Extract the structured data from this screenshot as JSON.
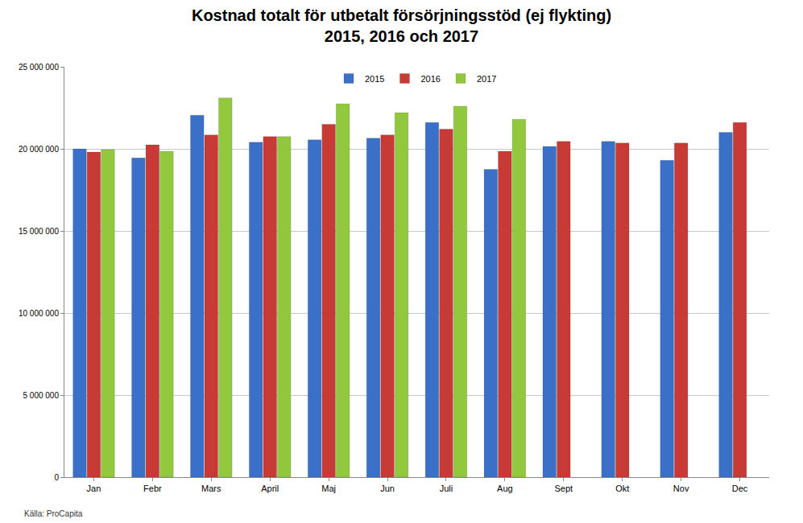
{
  "chart_data": {
    "type": "bar",
    "title": "Kostnad totalt för utbetalt försörjningsstöd (ej flykting)\n2015, 2016 och 2017",
    "annotations": [
      "Källa: ProCapita"
    ],
    "categories": [
      "Jan",
      "Febr",
      "Mars",
      "April",
      "Maj",
      "Jun",
      "Juli",
      "Aug",
      "Sept",
      "Okt",
      "Nov",
      "Dec"
    ],
    "series": [
      {
        "name": "2015",
        "color": "#3a70c8",
        "values": [
          20000000,
          19450000,
          22050000,
          20400000,
          20550000,
          20650000,
          21600000,
          18750000,
          20150000,
          20450000,
          19300000,
          21000000
        ]
      },
      {
        "name": "2016",
        "color": "#c83a35",
        "values": [
          19800000,
          20250000,
          20850000,
          20750000,
          21500000,
          20850000,
          21200000,
          19850000,
          20450000,
          20350000,
          20350000,
          21600000
        ]
      },
      {
        "name": "2017",
        "color": "#92c83e",
        "values": [
          19950000,
          19850000,
          23100000,
          20750000,
          22750000,
          22200000,
          22600000,
          21800000,
          null,
          null,
          null,
          null
        ]
      }
    ],
    "ylim": [
      0,
      25000000
    ],
    "yticks": [
      0,
      {
        "value": 5000000,
        "label": "5 000 000"
      },
      {
        "value": 10000000,
        "label": "10 000 000"
      },
      {
        "value": 15000000,
        "label": "15 000 000"
      },
      {
        "value": 20000000,
        "label": "20 000 000"
      },
      {
        "value": 25000000,
        "label": "25 000 000"
      }
    ],
    "grid": true,
    "legend": "top"
  }
}
